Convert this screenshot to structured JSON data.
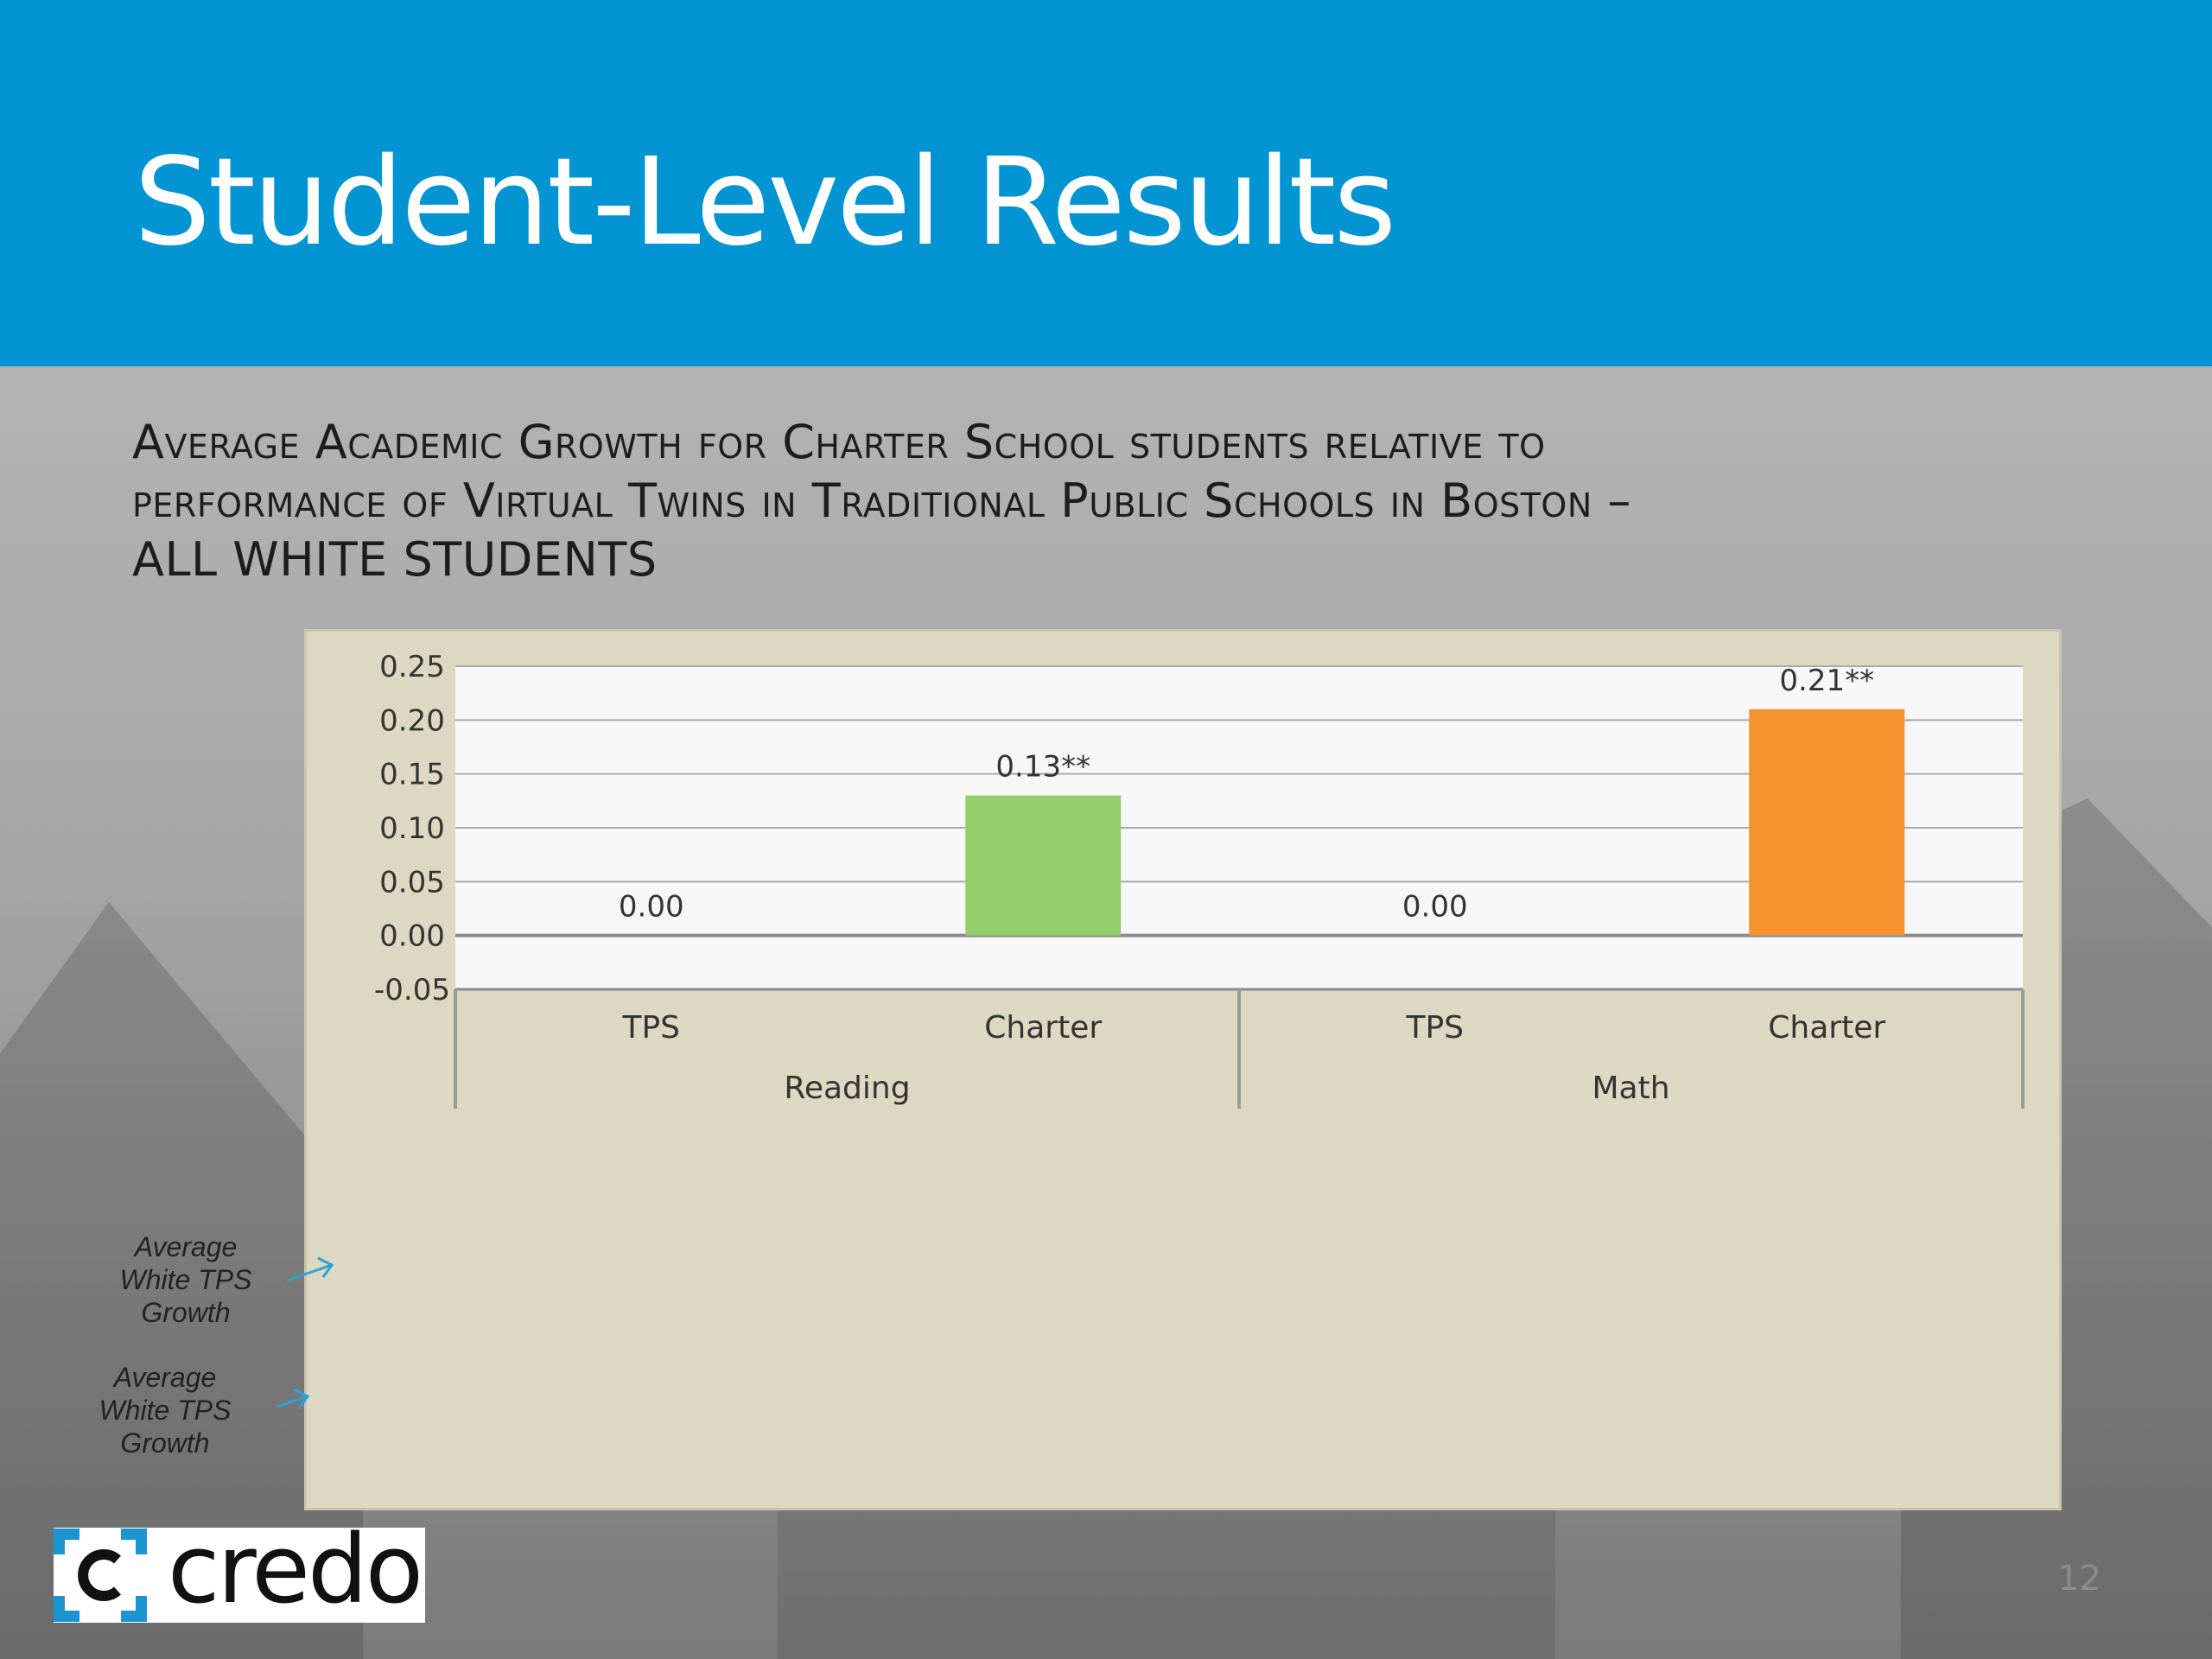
{
  "slide": {
    "title": "Student-Level Results",
    "subtitle_lines": [
      "Average Academic Growth for Charter School students relative to",
      "performance of Virtual Twins in Traditional Public Schools in Boston –",
      "ALL WHITE STUDENTS"
    ],
    "page_number": "12",
    "logo_text": "credo",
    "header_color": "#0294d3"
  },
  "annotations": [
    {
      "text": "Average White TPS Growth",
      "points_to": "0.00"
    },
    {
      "text": "Average White TPS Growth",
      "points_to": "-0.05"
    }
  ],
  "chart_data": {
    "type": "bar",
    "title": "",
    "xlabel": "",
    "ylabel": "",
    "ylim": [
      -0.05,
      0.25
    ],
    "yticks": [
      "0.25",
      "0.20",
      "0.15",
      "0.10",
      "0.05",
      "0.00",
      "-0.05"
    ],
    "grid": true,
    "categories": [
      "TPS",
      "Charter",
      "TPS",
      "Charter"
    ],
    "groups": [
      {
        "label": "Reading",
        "categories": [
          "TPS",
          "Charter"
        ]
      },
      {
        "label": "Math",
        "categories": [
          "TPS",
          "Charter"
        ]
      }
    ],
    "values": [
      0.0,
      0.13,
      0.0,
      0.21
    ],
    "data_labels": [
      "0.00",
      "0.13**",
      "0.00",
      "0.21**"
    ],
    "colors": [
      "#94cd6a",
      "#94cd6a",
      "#f5922d",
      "#f5922d"
    ]
  }
}
